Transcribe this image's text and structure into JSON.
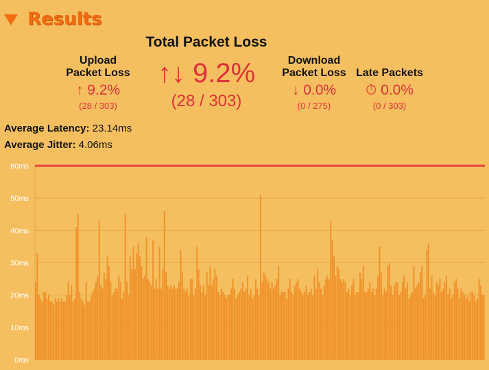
{
  "section": {
    "title": "Results"
  },
  "upload": {
    "label_line1": "Upload",
    "label_line2": "Packet Loss",
    "value": "↑ 9.2%",
    "detail": "(28 / 303)"
  },
  "total": {
    "title": "Total Packet Loss",
    "value": "↑↓ 9.2%",
    "detail": "(28 / 303)"
  },
  "download": {
    "label_line1": "Download",
    "label_line2": "Packet Loss",
    "value": "↓ 0.0%",
    "detail": "(0 / 275)"
  },
  "late": {
    "label": "Late Packets",
    "value": "⏱ 0.0%",
    "detail": "(0 / 303)"
  },
  "latency": {
    "label": "Average Latency:",
    "value": "23.14ms"
  },
  "jitter": {
    "label": "Average Jitter:",
    "value": "4.06ms"
  },
  "colors": {
    "accent": "#f26b10",
    "loss": "#e0313a",
    "bar": "#f0922b",
    "background": "#f5bf5f",
    "threshold": "#e84040"
  },
  "chart_data": {
    "type": "bar",
    "title": "",
    "xlabel": "",
    "ylabel": "",
    "y_ticks": [
      "0ms",
      "10ms",
      "20ms",
      "30ms",
      "40ms",
      "50ms",
      "60ms"
    ],
    "ylim": [
      0,
      60
    ],
    "threshold": 60,
    "grid": true,
    "values": [
      24,
      33,
      20,
      19,
      18,
      21,
      21,
      19,
      20,
      18,
      18,
      17,
      19,
      18,
      19,
      18,
      19,
      18,
      18,
      20,
      24,
      20,
      23,
      18,
      19,
      41,
      45,
      21,
      19,
      18,
      17,
      24,
      18,
      18,
      20,
      21,
      22,
      24,
      26,
      43,
      23,
      22,
      27,
      25,
      32,
      29,
      24,
      20,
      21,
      22,
      22,
      26,
      24,
      19,
      21,
      45,
      24,
      20,
      32,
      28,
      35,
      28,
      33,
      36,
      32,
      29,
      25,
      26,
      38,
      25,
      24,
      23,
      37,
      22,
      25,
      22,
      35,
      22,
      28,
      46,
      27,
      23,
      22,
      23,
      22,
      23,
      22,
      22,
      24,
      34,
      27,
      22,
      21,
      22,
      20,
      25,
      25,
      20,
      22,
      35,
      28,
      23,
      21,
      23,
      20,
      27,
      23,
      29,
      23,
      25,
      28,
      26,
      21,
      20,
      22,
      21,
      20,
      19,
      20,
      20,
      22,
      25,
      22,
      19,
      20,
      21,
      22,
      24,
      21,
      22,
      26,
      20,
      22,
      19,
      20,
      25,
      22,
      20,
      51,
      24,
      27,
      26,
      25,
      24,
      22,
      24,
      22,
      23,
      25,
      29,
      20,
      21,
      21,
      21,
      19,
      22,
      25,
      21,
      20,
      23,
      24,
      25,
      22,
      21,
      20,
      21,
      23,
      20,
      21,
      22,
      20,
      26,
      22,
      28,
      24,
      22,
      20,
      23,
      25,
      26,
      25,
      43,
      37,
      32,
      26,
      29,
      28,
      25,
      24,
      25,
      24,
      21,
      22,
      20,
      23,
      25,
      20,
      21,
      21,
      27,
      25,
      29,
      21,
      21,
      22,
      24,
      21,
      22,
      20,
      22,
      26,
      35,
      27,
      20,
      22,
      21,
      29,
      30,
      23,
      20,
      23,
      24,
      24,
      20,
      21,
      24,
      26,
      22,
      24,
      19,
      20,
      21,
      29,
      22,
      23,
      24,
      27,
      29,
      19,
      20,
      34,
      36,
      22,
      26,
      21,
      20,
      24,
      23,
      25,
      21,
      22,
      24,
      26,
      20,
      22,
      19,
      20,
      24,
      25,
      22,
      19,
      22,
      21,
      20,
      19,
      20,
      18,
      21,
      21,
      20,
      18,
      19,
      25,
      23,
      20,
      20
    ]
  }
}
